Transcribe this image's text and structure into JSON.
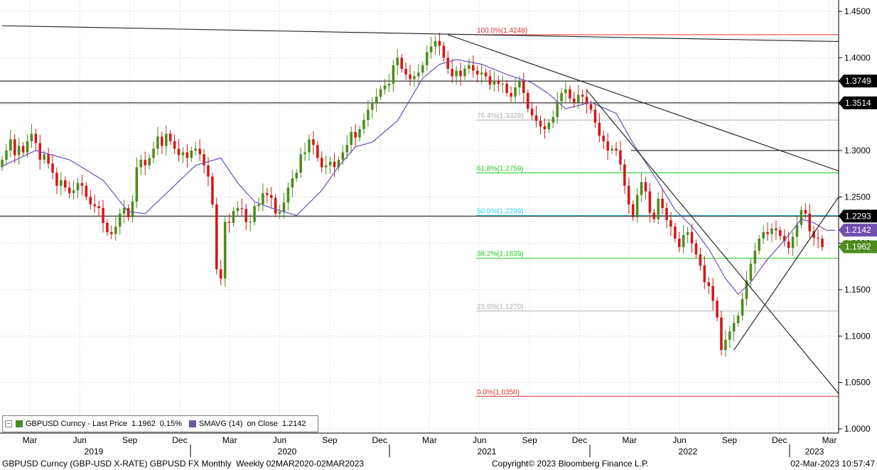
{
  "chart_data": {
    "type": "candlestick",
    "instrument": "GBPUSD Curncy (GBP-USD X-RATE) GBPUSD FX Monthly",
    "period_label": "Weekly 02MAR2020-02MAR2023",
    "copyright": "Copyright© 2023 Bloomberg Finance L.P.",
    "timestamp": "02-Mar-2023 10:57:47",
    "y_axis": {
      "min": 1.0,
      "max": 1.45,
      "ticks": [
        "1.0000",
        "1.0500",
        "1.1000",
        "1.1500",
        "1.2000",
        "1.2500",
        "1.3000",
        "1.3500",
        "1.4000",
        "1.4500"
      ]
    },
    "x_axis": {
      "months": [
        "Mar",
        "Jun",
        "Sep",
        "Dec",
        "Mar",
        "Jun",
        "Sep",
        "Dec",
        "Mar",
        "Jun",
        "Sep",
        "Dec",
        "Mar",
        "Jun",
        "Sep",
        "Dec",
        "Mar"
      ],
      "years": [
        "2019",
        "2020",
        "2021",
        "2022",
        "2023"
      ]
    },
    "price_labels": [
      {
        "text": "1.3749",
        "value": 1.3749,
        "style": "black"
      },
      {
        "text": "1.3514",
        "value": 1.3514,
        "style": "black"
      },
      {
        "text": "1.2293",
        "value": 1.2293,
        "style": "black"
      },
      {
        "text": "1.2142",
        "value": 1.2142,
        "style": "purple"
      },
      {
        "text": "1.1962",
        "value": 1.1962,
        "style": "green"
      }
    ],
    "fibonacci": [
      {
        "label": "100.0%(1.4248)",
        "value": 1.4248,
        "color": "#e03030"
      },
      {
        "label": "76.4%(1.3328)",
        "value": 1.3328,
        "color": "#b0b0b0"
      },
      {
        "label": "61.8%(1.2759)",
        "value": 1.2759,
        "color": "#22cc22"
      },
      {
        "label": "50.0%(1.2299)",
        "value": 1.2299,
        "color": "#22d8e8"
      },
      {
        "label": "38.2%(1.1839)",
        "value": 1.1839,
        "color": "#22cc22"
      },
      {
        "label": "23.6%(1.1270)",
        "value": 1.127,
        "color": "#b0b0b0"
      },
      {
        "label": "0.0%(1.0350)",
        "value": 1.035,
        "color": "#e03030"
      }
    ],
    "horizontal_levels": [
      1.3749,
      1.3514,
      1.3,
      1.2293
    ],
    "legend": {
      "series1": "GBPUSD Curncy - Last Price",
      "series1_value": "1.1962",
      "series1_change": "0.15%",
      "series1_color": "#4c8c1c",
      "series2": "SMAVG (14)",
      "series2_on": "on Close",
      "series2_value": "1.2142",
      "series2_color": "#7050b0"
    },
    "closes": [
      1.29,
      1.3,
      1.312,
      1.295,
      1.305,
      1.298,
      1.31,
      1.318,
      1.308,
      1.29,
      1.296,
      1.286,
      1.276,
      1.262,
      1.268,
      1.26,
      1.254,
      1.257,
      1.265,
      1.262,
      1.25,
      1.242,
      1.24,
      1.238,
      1.222,
      1.212,
      1.21,
      1.218,
      1.232,
      1.238,
      1.228,
      1.245,
      1.282,
      1.29,
      1.284,
      1.292,
      1.302,
      1.315,
      1.305,
      1.318,
      1.31,
      1.302,
      1.295,
      1.298,
      1.292,
      1.3,
      1.302,
      1.296,
      1.284,
      1.272,
      1.242,
      1.172,
      1.162,
      1.223,
      1.222,
      1.235,
      1.238,
      1.237,
      1.223,
      1.223,
      1.24,
      1.242,
      1.254,
      1.252,
      1.249,
      1.232,
      1.234,
      1.244,
      1.26,
      1.27,
      1.276,
      1.296,
      1.298,
      1.312,
      1.306,
      1.292,
      1.282,
      1.284,
      1.288,
      1.282,
      1.29,
      1.298,
      1.306,
      1.32,
      1.314,
      1.323,
      1.333,
      1.344,
      1.352,
      1.358,
      1.366,
      1.37,
      1.372,
      1.392,
      1.4,
      1.388,
      1.382,
      1.377,
      1.38,
      1.384,
      1.392,
      1.406,
      1.412,
      1.418,
      1.413,
      1.4,
      1.388,
      1.38,
      1.386,
      1.38,
      1.388,
      1.392,
      1.386,
      1.382,
      1.384,
      1.38,
      1.371,
      1.375,
      1.372,
      1.372,
      1.362,
      1.358,
      1.368,
      1.375,
      1.362,
      1.345,
      1.338,
      1.332,
      1.326,
      1.323,
      1.33,
      1.336,
      1.353,
      1.362,
      1.366,
      1.356,
      1.352,
      1.36,
      1.358,
      1.35,
      1.344,
      1.33,
      1.316,
      1.31,
      1.3,
      1.302,
      1.3,
      1.285,
      1.262,
      1.242,
      1.228,
      1.252,
      1.266,
      1.256,
      1.233,
      1.226,
      1.248,
      1.238,
      1.225,
      1.218,
      1.205,
      1.196,
      1.209,
      1.212,
      1.2,
      1.188,
      1.176,
      1.158,
      1.154,
      1.138,
      1.12,
      1.085,
      1.096,
      1.105,
      1.114,
      1.122,
      1.14,
      1.16,
      1.178,
      1.192,
      1.205,
      1.212,
      1.21,
      1.216,
      1.214,
      1.208,
      1.202,
      1.195,
      1.207,
      1.22,
      1.236,
      1.232,
      1.213,
      1.206,
      1.205,
      1.196
    ],
    "sma_points": [
      [
        0,
        1.283
      ],
      [
        8,
        1.3
      ],
      [
        16,
        1.29
      ],
      [
        24,
        1.268
      ],
      [
        30,
        1.234
      ],
      [
        34,
        1.232
      ],
      [
        40,
        1.258
      ],
      [
        46,
        1.284
      ],
      [
        52,
        1.292
      ],
      [
        56,
        1.265
      ],
      [
        60,
        1.245
      ],
      [
        64,
        1.238
      ],
      [
        70,
        1.23
      ],
      [
        76,
        1.257
      ],
      [
        80,
        1.283
      ],
      [
        84,
        1.304
      ],
      [
        88,
        1.309
      ],
      [
        94,
        1.332
      ],
      [
        100,
        1.378
      ],
      [
        104,
        1.393
      ],
      [
        108,
        1.398
      ],
      [
        114,
        1.393
      ],
      [
        120,
        1.382
      ],
      [
        126,
        1.373
      ],
      [
        130,
        1.361
      ],
      [
        134,
        1.345
      ],
      [
        140,
        1.352
      ],
      [
        146,
        1.34
      ],
      [
        150,
        1.308
      ],
      [
        156,
        1.266
      ],
      [
        160,
        1.236
      ],
      [
        164,
        1.218
      ],
      [
        168,
        1.194
      ],
      [
        172,
        1.162
      ],
      [
        175,
        1.145
      ],
      [
        178,
        1.158
      ],
      [
        182,
        1.183
      ],
      [
        186,
        1.203
      ],
      [
        190,
        1.226
      ],
      [
        193,
        1.222
      ],
      [
        196,
        1.214
      ],
      [
        198,
        1.214
      ]
    ],
    "trendlines": [
      {
        "x1": 0,
        "y1": 1.4345,
        "x2": 198,
        "y2": 1.4175
      },
      {
        "x1": 106,
        "y1": 1.4248,
        "x2": 198,
        "y2": 1.278
      },
      {
        "x1": 139,
        "y1": 1.365,
        "x2": 198,
        "y2": 1.038
      },
      {
        "x1": 174,
        "y1": 1.085,
        "x2": 198,
        "y2": 1.25
      }
    ]
  }
}
